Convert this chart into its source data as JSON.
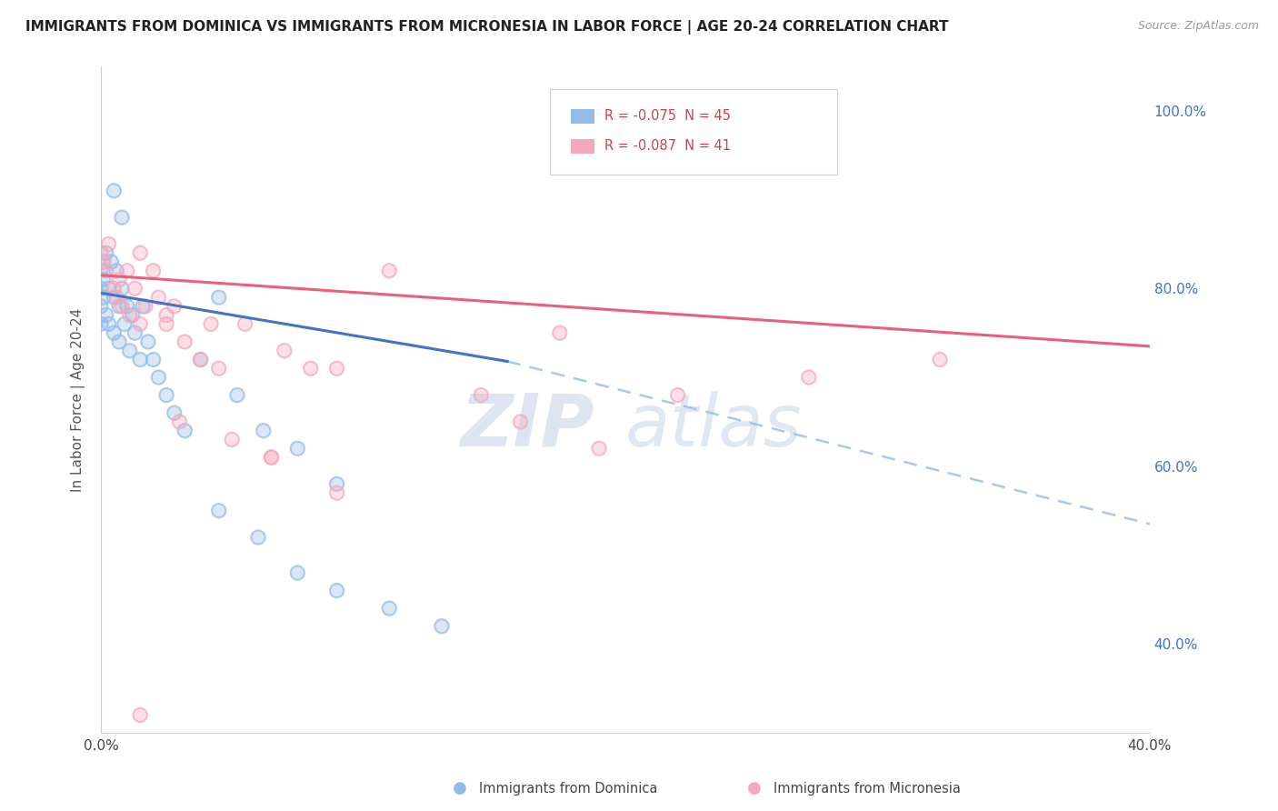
{
  "title": "IMMIGRANTS FROM DOMINICA VS IMMIGRANTS FROM MICRONESIA IN LABOR FORCE | AGE 20-24 CORRELATION CHART",
  "source": "Source: ZipAtlas.com",
  "ylabel": "In Labor Force | Age 20-24",
  "xlim": [
    0.0,
    0.4
  ],
  "ylim": [
    0.3,
    1.05
  ],
  "dominica_R": -0.075,
  "dominica_N": 45,
  "micronesia_R": -0.087,
  "micronesia_N": 41,
  "dominica_color": "#92bce8",
  "micronesia_color": "#f5a8bc",
  "dominica_line_color": "#4472c4",
  "micronesia_line_color": "#e8607a",
  "dashed_line_color": "#92bce8",
  "watermark": "ZIPatlas",
  "bg_color": "#ffffff",
  "grid_color": "#d8d8d8",
  "dominica_x": [
    0.0,
    0.0,
    0.0,
    0.0,
    0.001,
    0.001,
    0.001,
    0.002,
    0.002,
    0.003,
    0.003,
    0.004,
    0.005,
    0.005,
    0.006,
    0.007,
    0.007,
    0.008,
    0.009,
    0.01,
    0.011,
    0.012,
    0.013,
    0.015,
    0.016,
    0.018,
    0.02,
    0.022,
    0.025,
    0.028,
    0.032,
    0.038,
    0.045,
    0.052,
    0.062,
    0.075,
    0.09,
    0.045,
    0.06,
    0.075,
    0.09,
    0.11,
    0.13,
    0.005,
    0.008
  ],
  "dominica_y": [
    0.82,
    0.8,
    0.78,
    0.76,
    0.83,
    0.81,
    0.79,
    0.84,
    0.77,
    0.8,
    0.76,
    0.83,
    0.79,
    0.75,
    0.82,
    0.78,
    0.74,
    0.8,
    0.76,
    0.78,
    0.73,
    0.77,
    0.75,
    0.72,
    0.78,
    0.74,
    0.72,
    0.7,
    0.68,
    0.66,
    0.64,
    0.72,
    0.79,
    0.68,
    0.64,
    0.62,
    0.58,
    0.55,
    0.52,
    0.48,
    0.46,
    0.44,
    0.42,
    0.91,
    0.88
  ],
  "micronesia_x": [
    0.0,
    0.001,
    0.002,
    0.003,
    0.005,
    0.006,
    0.007,
    0.008,
    0.01,
    0.011,
    0.013,
    0.015,
    0.017,
    0.02,
    0.022,
    0.025,
    0.028,
    0.032,
    0.038,
    0.045,
    0.055,
    0.07,
    0.09,
    0.11,
    0.145,
    0.175,
    0.22,
    0.03,
    0.05,
    0.065,
    0.08,
    0.27,
    0.16,
    0.19,
    0.015,
    0.025,
    0.042,
    0.065,
    0.09,
    0.32,
    0.015
  ],
  "micronesia_y": [
    0.84,
    0.83,
    0.82,
    0.85,
    0.8,
    0.79,
    0.81,
    0.78,
    0.82,
    0.77,
    0.8,
    0.76,
    0.78,
    0.82,
    0.79,
    0.76,
    0.78,
    0.74,
    0.72,
    0.71,
    0.76,
    0.73,
    0.71,
    0.82,
    0.68,
    0.75,
    0.68,
    0.65,
    0.63,
    0.61,
    0.71,
    0.7,
    0.65,
    0.62,
    0.84,
    0.77,
    0.76,
    0.61,
    0.57,
    0.72,
    0.32
  ],
  "dom_line_x0": 0.0,
  "dom_line_y0": 0.795,
  "dom_line_x1": 0.155,
  "dom_line_y1": 0.718,
  "mic_line_x0": 0.0,
  "mic_line_y0": 0.815,
  "mic_line_x1": 0.4,
  "mic_line_y1": 0.735,
  "dash_line_x0": 0.155,
  "dash_line_y0": 0.718,
  "dash_line_x1": 0.4,
  "dash_line_y1": 0.535
}
